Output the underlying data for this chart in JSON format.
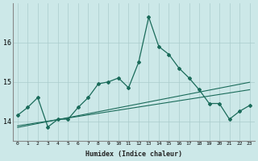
{
  "x": [
    0,
    1,
    2,
    3,
    4,
    5,
    6,
    7,
    8,
    9,
    10,
    11,
    12,
    13,
    14,
    15,
    16,
    17,
    18,
    19,
    20,
    21,
    22,
    23
  ],
  "y_main": [
    14.15,
    14.35,
    14.6,
    13.85,
    14.05,
    14.05,
    14.35,
    14.6,
    14.95,
    15.0,
    15.1,
    14.85,
    15.5,
    16.65,
    15.9,
    15.7,
    15.35,
    15.1,
    14.8,
    14.45,
    14.45,
    14.05,
    14.25,
    14.4
  ],
  "y_trend1": [
    13.88,
    13.92,
    13.96,
    14.0,
    14.04,
    14.08,
    14.12,
    14.16,
    14.2,
    14.24,
    14.28,
    14.32,
    14.36,
    14.4,
    14.44,
    14.48,
    14.52,
    14.56,
    14.6,
    14.64,
    14.68,
    14.72,
    14.76,
    14.8
  ],
  "y_trend2": [
    13.84,
    13.89,
    13.94,
    13.99,
    14.04,
    14.09,
    14.14,
    14.19,
    14.24,
    14.29,
    14.34,
    14.39,
    14.44,
    14.49,
    14.54,
    14.59,
    14.64,
    14.69,
    14.74,
    14.79,
    14.84,
    14.89,
    14.94,
    14.99
  ],
  "background_color": "#cce8e8",
  "grid_color": "#aacccc",
  "line_color": "#1a6b5a",
  "xlabel": "Humidex (Indice chaleur)",
  "yticks": [
    14,
    15,
    16
  ],
  "xticks": [
    0,
    1,
    2,
    3,
    4,
    5,
    6,
    7,
    8,
    9,
    10,
    11,
    12,
    13,
    14,
    15,
    16,
    17,
    18,
    19,
    20,
    21,
    22,
    23
  ],
  "ylim": [
    13.5,
    17.0
  ],
  "xlim": [
    -0.5,
    23.5
  ]
}
